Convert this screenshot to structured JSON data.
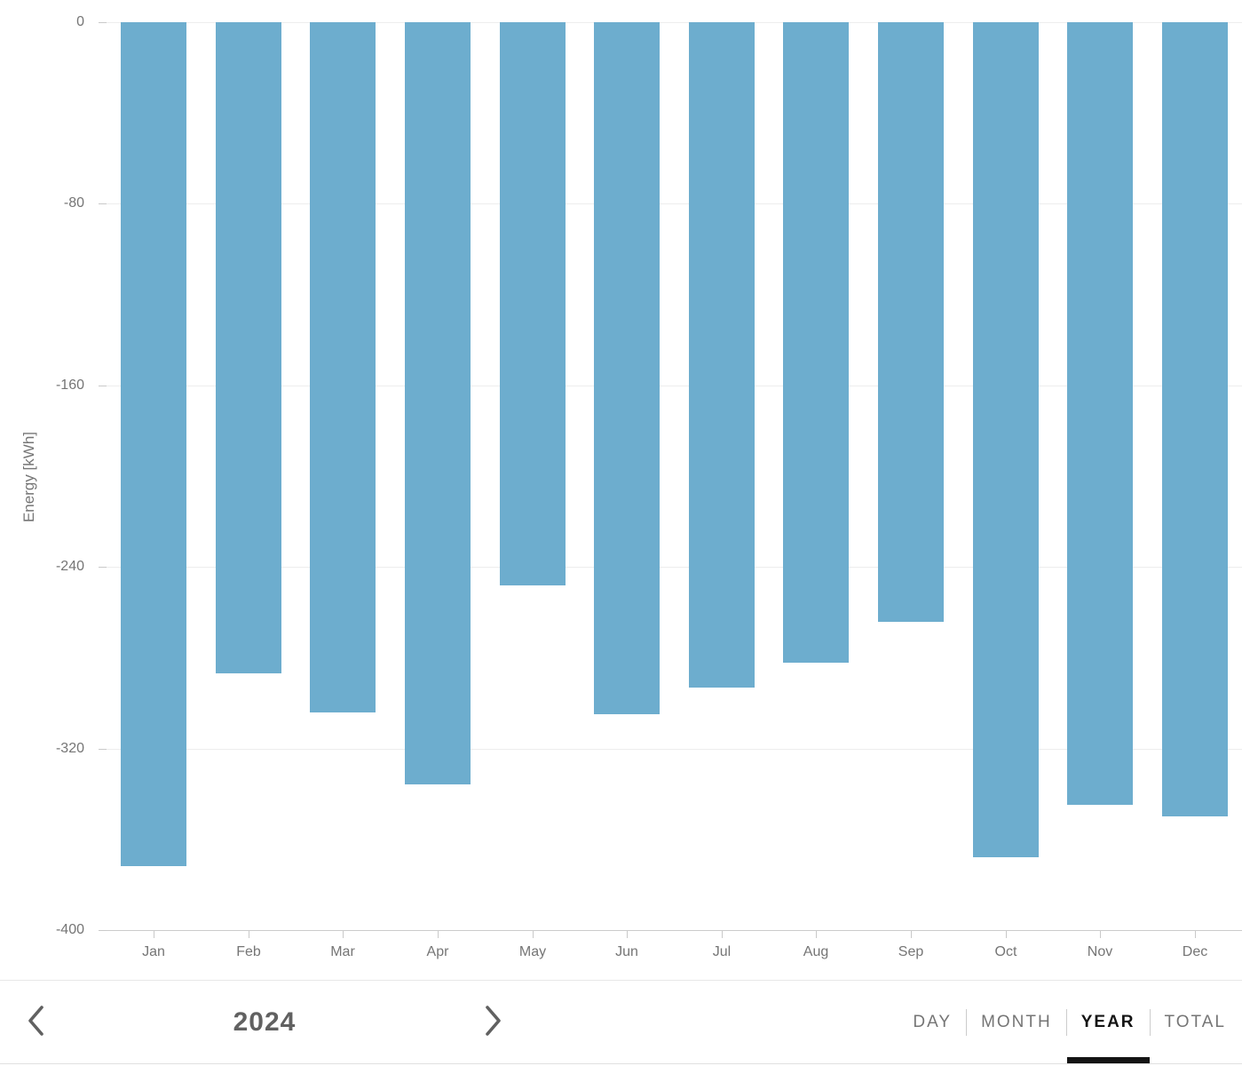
{
  "chart_data": {
    "type": "bar",
    "title": "",
    "xlabel": "",
    "ylabel": "Energy [kWh]",
    "categories": [
      "Jan",
      "Feb",
      "Mar",
      "Apr",
      "May",
      "Jun",
      "Jul",
      "Aug",
      "Sep",
      "Oct",
      "Nov",
      "Dec"
    ],
    "values": [
      -372,
      -287,
      -304,
      -336,
      -248,
      -305,
      -293,
      -282,
      -264,
      -368,
      -345,
      -350
    ],
    "ylim": [
      -400,
      0
    ],
    "yticks": [
      0,
      -80,
      -160,
      -240,
      -320,
      -400
    ],
    "grid": true,
    "legend": "none",
    "bar_color": "#6dadce"
  },
  "colors": {
    "bar": "#6dadce",
    "gridline": "#ededed",
    "axis_line": "#cccccc",
    "tick_label": "#757575",
    "nav_text": "#757575",
    "nav_active_text": "#141414",
    "year_text": "#616161"
  },
  "icons": {
    "prev": "chevron-left",
    "next": "chevron-right"
  },
  "nav": {
    "year": "2024",
    "tabs": [
      {
        "label": "DAY",
        "active": false
      },
      {
        "label": "MONTH",
        "active": false
      },
      {
        "label": "YEAR",
        "active": true
      },
      {
        "label": "TOTAL",
        "active": false
      }
    ]
  }
}
